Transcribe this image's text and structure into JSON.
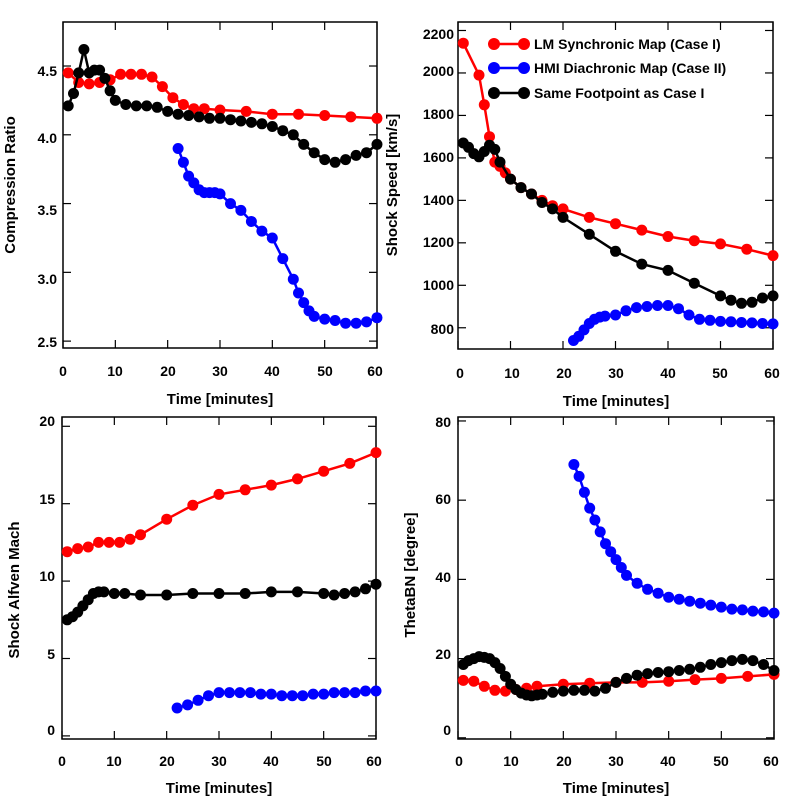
{
  "colors": {
    "red": "#ff0000",
    "blue": "#0000ff",
    "black": "#000000"
  },
  "legend": {
    "position": "top-right of panel 2",
    "entries": [
      {
        "label": "LM Synchronic Map (Case I)",
        "color": "#ff0000"
      },
      {
        "label": "HMI Diachronic Map (Case II)",
        "color": "#0000ff"
      },
      {
        "label": "Same Footpoint as Case I",
        "color": "#000000"
      }
    ]
  },
  "chart_data": [
    {
      "type": "line",
      "title": "",
      "xlabel": "Time [minutes]",
      "ylabel": "Compression Ratio",
      "xlim": [
        0,
        60
      ],
      "ylim": [
        2.45,
        4.82
      ],
      "xticks": [
        "0",
        "10",
        "20",
        "30",
        "40",
        "50",
        "60"
      ],
      "yticks": [
        "2.5",
        "3.0",
        "3.5",
        "4.0",
        "4.5"
      ],
      "series": [
        {
          "name": "LM Synchronic Map (Case I)",
          "color": "#ff0000",
          "x": [
            1,
            3,
            5,
            7,
            9,
            11,
            13,
            15,
            17,
            19,
            21,
            23,
            25,
            27,
            30,
            35,
            40,
            45,
            50,
            55,
            60
          ],
          "y": [
            4.45,
            4.38,
            4.37,
            4.38,
            4.4,
            4.44,
            4.44,
            4.44,
            4.42,
            4.35,
            4.27,
            4.22,
            4.19,
            4.19,
            4.18,
            4.17,
            4.15,
            4.15,
            4.14,
            4.13,
            4.12
          ]
        },
        {
          "name": "HMI Diachronic Map (Case II)",
          "color": "#0000ff",
          "x": [
            22,
            23,
            24,
            25,
            26,
            27,
            28,
            29,
            30,
            32,
            34,
            36,
            38,
            40,
            42,
            44,
            45,
            46,
            47,
            48,
            50,
            52,
            54,
            56,
            58,
            60
          ],
          "y": [
            3.9,
            3.8,
            3.7,
            3.65,
            3.6,
            3.58,
            3.58,
            3.58,
            3.57,
            3.5,
            3.45,
            3.37,
            3.3,
            3.25,
            3.1,
            2.95,
            2.85,
            2.78,
            2.72,
            2.68,
            2.66,
            2.65,
            2.63,
            2.63,
            2.64,
            2.67
          ]
        },
        {
          "name": "Same Footpoint as Case I",
          "color": "#000000",
          "x": [
            1,
            2,
            3,
            4,
            5,
            6,
            7,
            8,
            9,
            10,
            12,
            14,
            16,
            18,
            20,
            22,
            24,
            26,
            28,
            30,
            32,
            34,
            36,
            38,
            40,
            42,
            44,
            46,
            48,
            50,
            52,
            54,
            56,
            58,
            60
          ],
          "y": [
            4.21,
            4.3,
            4.45,
            4.62,
            4.45,
            4.47,
            4.47,
            4.41,
            4.32,
            4.25,
            4.22,
            4.21,
            4.21,
            4.2,
            4.17,
            4.15,
            4.14,
            4.13,
            4.12,
            4.12,
            4.11,
            4.1,
            4.09,
            4.08,
            4.06,
            4.03,
            4.0,
            3.93,
            3.87,
            3.82,
            3.8,
            3.82,
            3.85,
            3.87,
            3.93
          ]
        }
      ]
    },
    {
      "type": "line",
      "title": "",
      "xlabel": "Time [minutes]",
      "ylabel": "Shock Speed [km/s]",
      "xlim": [
        0,
        60
      ],
      "ylim": [
        700,
        2240
      ],
      "xticks": [
        "0",
        "10",
        "20",
        "30",
        "40",
        "50",
        "60"
      ],
      "yticks": [
        "800",
        "1000",
        "1200",
        "1400",
        "1600",
        "1800",
        "2000",
        "2200"
      ],
      "series": [
        {
          "name": "LM Synchronic Map (Case I)",
          "color": "#ff0000",
          "x": [
            1,
            4,
            5,
            6,
            7,
            8,
            9,
            10,
            12,
            14,
            16,
            18,
            20,
            25,
            30,
            35,
            40,
            45,
            50,
            55,
            60
          ],
          "y": [
            2140,
            1990,
            1850,
            1700,
            1580,
            1560,
            1530,
            1500,
            1460,
            1430,
            1400,
            1375,
            1360,
            1320,
            1290,
            1260,
            1230,
            1210,
            1195,
            1170,
            1140
          ]
        },
        {
          "name": "HMI Diachronic Map (Case II)",
          "color": "#0000ff",
          "x": [
            22,
            23,
            24,
            25,
            26,
            27,
            28,
            30,
            32,
            34,
            36,
            38,
            40,
            42,
            44,
            46,
            48,
            50,
            52,
            54,
            56,
            58,
            60
          ],
          "y": [
            740,
            760,
            790,
            820,
            840,
            850,
            855,
            860,
            880,
            895,
            900,
            905,
            905,
            890,
            860,
            840,
            835,
            830,
            828,
            825,
            823,
            820,
            818
          ]
        },
        {
          "name": "Same Footpoint as Case I",
          "color": "#000000",
          "x": [
            1,
            2,
            3,
            4,
            5,
            6,
            7,
            8,
            10,
            12,
            14,
            16,
            18,
            20,
            25,
            30,
            35,
            40,
            45,
            50,
            52,
            54,
            56,
            58,
            60
          ],
          "y": [
            1670,
            1650,
            1620,
            1605,
            1630,
            1660,
            1640,
            1580,
            1500,
            1460,
            1430,
            1390,
            1360,
            1320,
            1240,
            1160,
            1100,
            1070,
            1010,
            950,
            930,
            915,
            920,
            940,
            950
          ]
        }
      ]
    },
    {
      "type": "line",
      "title": "",
      "xlabel": "Time [minutes]",
      "ylabel": "Shock Alfven Mach",
      "xlim": [
        0,
        60
      ],
      "ylim": [
        -0.2,
        20.6
      ],
      "xticks": [
        "0",
        "10",
        "20",
        "30",
        "40",
        "50",
        "60"
      ],
      "yticks": [
        "0",
        "5",
        "10",
        "15",
        "20"
      ],
      "series": [
        {
          "name": "LM Synchronic Map (Case I)",
          "color": "#ff0000",
          "x": [
            1,
            3,
            5,
            7,
            9,
            11,
            13,
            15,
            20,
            25,
            30,
            35,
            40,
            45,
            50,
            55,
            60
          ],
          "y": [
            11.9,
            12.1,
            12.2,
            12.5,
            12.5,
            12.5,
            12.7,
            13.0,
            14.0,
            14.9,
            15.6,
            15.9,
            16.2,
            16.6,
            17.1,
            17.6,
            18.3
          ]
        },
        {
          "name": "HMI Diachronic Map (Case II)",
          "color": "#0000ff",
          "x": [
            22,
            24,
            26,
            28,
            30,
            32,
            34,
            36,
            38,
            40,
            42,
            44,
            46,
            48,
            50,
            52,
            54,
            56,
            58,
            60
          ],
          "y": [
            1.8,
            2.0,
            2.3,
            2.6,
            2.8,
            2.8,
            2.8,
            2.8,
            2.7,
            2.7,
            2.6,
            2.6,
            2.6,
            2.7,
            2.7,
            2.8,
            2.8,
            2.8,
            2.9,
            2.9
          ]
        },
        {
          "name": "Same Footpoint as Case I",
          "color": "#000000",
          "x": [
            1,
            2,
            3,
            4,
            5,
            6,
            7,
            8,
            10,
            12,
            15,
            20,
            25,
            30,
            35,
            40,
            45,
            50,
            52,
            54,
            56,
            58,
            60
          ],
          "y": [
            7.5,
            7.7,
            8.0,
            8.4,
            8.8,
            9.2,
            9.3,
            9.3,
            9.2,
            9.2,
            9.1,
            9.1,
            9.2,
            9.2,
            9.2,
            9.3,
            9.3,
            9.2,
            9.1,
            9.2,
            9.3,
            9.5,
            9.8
          ]
        }
      ]
    },
    {
      "type": "line",
      "title": "",
      "xlabel": "Time [minutes]",
      "ylabel": "ThetaBN [degree]",
      "xlim": [
        0,
        60
      ],
      "ylim": [
        -0.3,
        81
      ],
      "xticks": [
        "0",
        "10",
        "20",
        "30",
        "40",
        "50",
        "60"
      ],
      "yticks": [
        "0",
        "20",
        "40",
        "60",
        "80"
      ],
      "series": [
        {
          "name": "LM Synchronic Map (Case I)",
          "color": "#ff0000",
          "x": [
            1,
            3,
            5,
            7,
            9,
            11,
            13,
            15,
            20,
            25,
            30,
            35,
            40,
            45,
            50,
            55,
            60
          ],
          "y": [
            14.5,
            14.3,
            13.0,
            12.0,
            11.8,
            12.2,
            12.5,
            13.0,
            13.5,
            13.8,
            14.0,
            14.0,
            14.3,
            14.7,
            15.0,
            15.5,
            16.0
          ]
        },
        {
          "name": "HMI Diachronic Map (Case II)",
          "color": "#0000ff",
          "x": [
            22,
            23,
            24,
            25,
            26,
            27,
            28,
            29,
            30,
            31,
            32,
            34,
            36,
            38,
            40,
            42,
            44,
            46,
            48,
            50,
            52,
            54,
            56,
            58,
            60
          ],
          "y": [
            69,
            66,
            62,
            58,
            55,
            52,
            49,
            47,
            45,
            43,
            41,
            39,
            37.5,
            36.5,
            35.5,
            35,
            34.5,
            34,
            33.5,
            33,
            32.5,
            32.3,
            32,
            31.8,
            31.5
          ]
        },
        {
          "name": "Same Footpoint as Case I",
          "color": "#000000",
          "x": [
            1,
            2,
            3,
            4,
            5,
            6,
            7,
            8,
            9,
            10,
            11,
            12,
            13,
            14,
            15,
            16,
            18,
            20,
            22,
            24,
            26,
            28,
            30,
            32,
            34,
            36,
            38,
            40,
            42,
            44,
            46,
            48,
            50,
            52,
            54,
            56,
            58,
            60
          ],
          "y": [
            18.5,
            19.5,
            20.0,
            20.5,
            20.3,
            20.0,
            19.0,
            17.5,
            15.5,
            13.5,
            12.2,
            11.3,
            10.8,
            10.6,
            10.8,
            11.0,
            11.5,
            11.8,
            12.0,
            12.0,
            11.8,
            12.5,
            14.0,
            15.0,
            15.8,
            16.2,
            16.5,
            16.7,
            17.0,
            17.3,
            17.8,
            18.5,
            19.0,
            19.5,
            19.8,
            19.5,
            18.5,
            17.0
          ]
        }
      ]
    }
  ]
}
